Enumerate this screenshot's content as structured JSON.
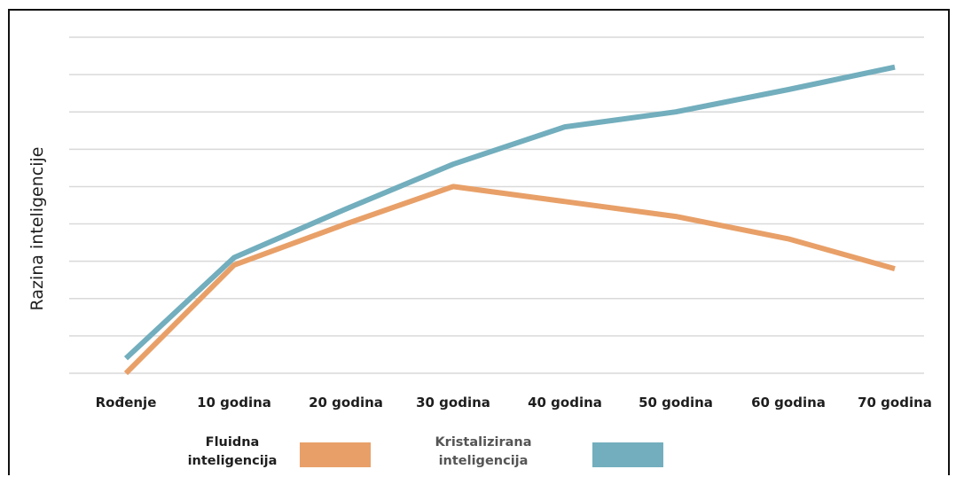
{
  "chart_data": {
    "type": "line",
    "title": "",
    "xlabel": "",
    "ylabel": "Razina inteligencije",
    "categories": [
      "Rođenje",
      "10 godina",
      "20 godina",
      "30 godina",
      "40 godina",
      "50 godina",
      "60 godina",
      "70 godina"
    ],
    "ylim": [
      0,
      9
    ],
    "grid": true,
    "legend_position": "bottom",
    "series": [
      {
        "name": "Fluidna inteligencija",
        "color": "#E8A068",
        "values": [
          0.0,
          2.9,
          4.0,
          5.0,
          4.6,
          4.2,
          3.6,
          2.8
        ]
      },
      {
        "name": "Kristalizirana inteligencija",
        "color": "#72AEBD",
        "values": [
          0.4,
          3.1,
          4.4,
          5.6,
          6.6,
          7.0,
          7.6,
          8.2
        ]
      }
    ],
    "legend": [
      {
        "line1": "Fluidna",
        "line2": "inteligencija",
        "color": "#E8A068",
        "text_color": "#1e1e1e"
      },
      {
        "line1": "Kristalizirana",
        "line2": "inteligencija",
        "color": "#72AEBD",
        "text_color": "#555555"
      }
    ]
  }
}
